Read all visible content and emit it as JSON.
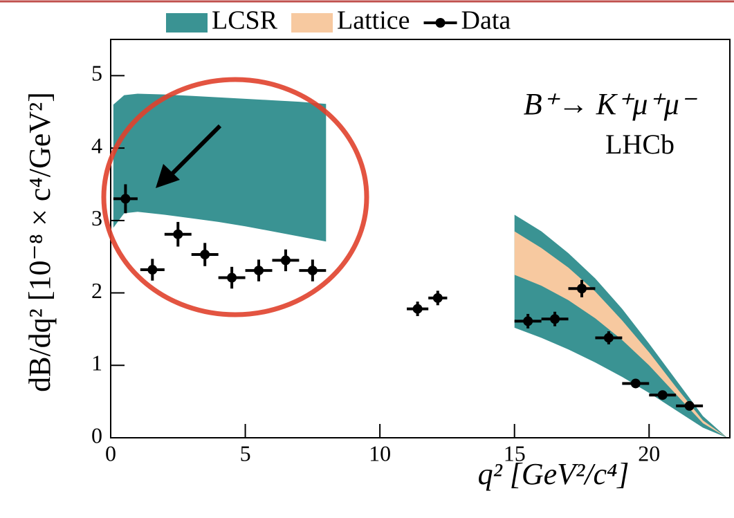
{
  "chart_data": {
    "type": "errorbar",
    "xlabel": "q² [GeV²/c⁴]",
    "ylabel": "dB/dq² [10⁻⁸ × c⁴/GeV²]",
    "annotations": [
      "B⁺→ K⁺μ⁺μ⁻",
      "LHCb"
    ],
    "xlim": [
      0,
      23
    ],
    "ylim": [
      0,
      5.5
    ],
    "xticks": [
      0,
      5,
      10,
      15,
      20
    ],
    "yticks": [
      0,
      1,
      2,
      3,
      4,
      5
    ],
    "legend": "top",
    "bands": [
      {
        "name": "LCSR",
        "color": "#3a9393",
        "segments": [
          {
            "x": [
              0.1,
              0.5,
              1,
              2,
              3,
              4,
              5,
              6,
              7,
              8
            ],
            "upper": [
              4.6,
              4.73,
              4.75,
              4.74,
              4.72,
              4.7,
              4.68,
              4.66,
              4.64,
              4.61
            ],
            "lower": [
              2.9,
              3.1,
              3.12,
              3.08,
              3.03,
              2.98,
              2.92,
              2.85,
              2.78,
              2.71
            ]
          },
          {
            "x": [
              15,
              16,
              17,
              18,
              19,
              20,
              21,
              22,
              22.9
            ],
            "upper": [
              3.08,
              2.85,
              2.55,
              2.2,
              1.78,
              1.3,
              0.8,
              0.3,
              0
            ],
            "lower": [
              1.52,
              1.38,
              1.22,
              1.04,
              0.84,
              0.62,
              0.38,
              0.14,
              0
            ]
          }
        ]
      },
      {
        "name": "Lattice",
        "color": "#f7c9a0",
        "segments": [
          {
            "x": [
              15,
              16,
              17,
              18,
              19,
              20,
              21,
              22,
              22.9
            ],
            "upper": [
              2.85,
              2.62,
              2.35,
              2.02,
              1.62,
              1.18,
              0.7,
              0.24,
              0
            ],
            "lower": [
              2.25,
              2.1,
              1.9,
              1.65,
              1.35,
              1.0,
              0.6,
              0.2,
              0
            ]
          }
        ]
      }
    ],
    "series": [
      {
        "name": "Data",
        "color": "#000000",
        "x": [
          0.55,
          1.55,
          2.5,
          3.5,
          4.5,
          5.5,
          6.5,
          7.5,
          11.4,
          12.15,
          15.5,
          16.5,
          17.5,
          18.5,
          19.5,
          20.5,
          21.5
        ],
        "xerr": [
          0.45,
          0.45,
          0.5,
          0.5,
          0.5,
          0.5,
          0.5,
          0.5,
          0.4,
          0.35,
          0.5,
          0.5,
          0.5,
          0.5,
          0.5,
          0.5,
          0.5
        ],
        "values": [
          3.3,
          2.32,
          2.81,
          2.53,
          2.21,
          2.31,
          2.45,
          2.31,
          1.78,
          1.93,
          1.61,
          1.64,
          2.06,
          1.38,
          0.75,
          0.59,
          0.44
        ],
        "errors": [
          0.2,
          0.15,
          0.17,
          0.16,
          0.15,
          0.15,
          0.15,
          0.15,
          0.1,
          0.1,
          0.1,
          0.1,
          0.12,
          0.09,
          0.06,
          0.05,
          0.04
        ]
      }
    ]
  }
}
